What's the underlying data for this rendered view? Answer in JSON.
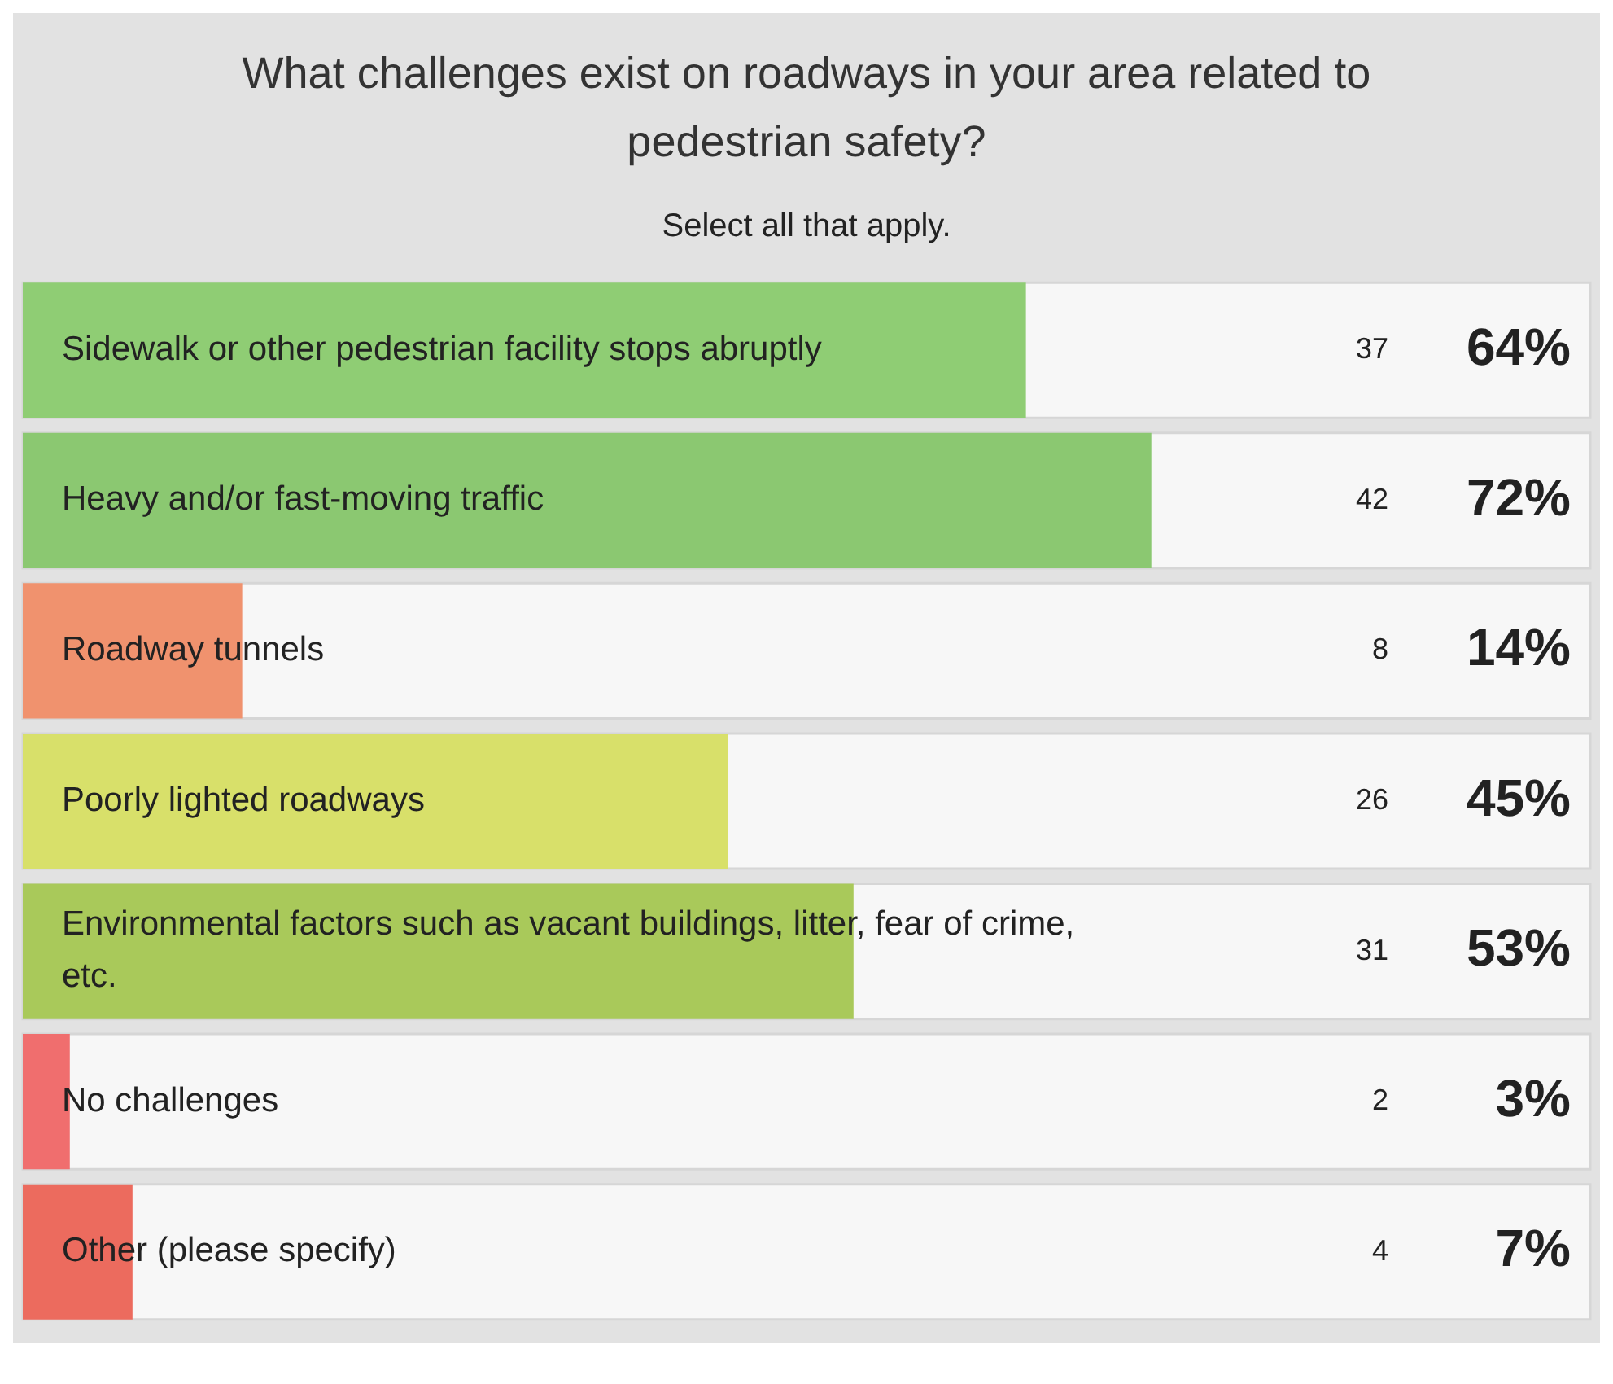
{
  "chart_data": {
    "type": "bar",
    "orientation": "horizontal",
    "title": "What challenges exist on roadways in your area related to pedestrian safety?",
    "subtitle": "Select all that apply.",
    "categories": [
      "Sidewalk or other pedestrian facility stops abruptly",
      "Heavy and/or fast-moving traffic",
      "Roadway tunnels",
      "Poorly lighted roadways",
      "Environmental factors such as vacant buildings, litter, fear of crime, etc.",
      "No challenges",
      "Other (please specify)"
    ],
    "values": [
      64,
      72,
      14,
      45,
      53,
      3,
      7
    ],
    "colors": [
      "#8fcd74",
      "#8bc871",
      "#f0926e",
      "#d8e06a",
      "#a9c95a",
      "#f06e6e",
      "#ec6b5e"
    ],
    "value_labels": [
      "64%",
      "72%",
      "14%",
      "45%",
      "53%",
      "3%",
      "7%"
    ],
    "annotations": [
      "37",
      "42",
      "8",
      "26",
      "31",
      "2",
      "4"
    ],
    "xlim": [
      0,
      100
    ],
    "tick_labels": "y",
    "legend": false
  }
}
